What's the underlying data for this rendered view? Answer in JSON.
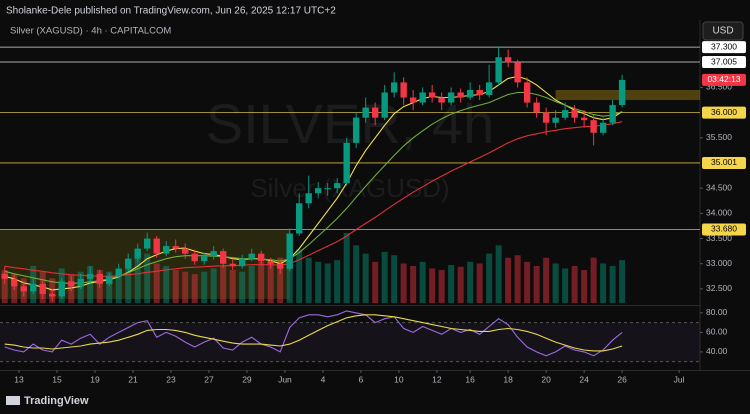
{
  "header": "Sholanke-Dele published on TradingView.com, Jun 26, 2025 12:17 UTC+2",
  "currency": "USD",
  "footer": "TradingView",
  "chart_data": {
    "type": "candlestick",
    "legend": "Silver (XAGUSD) · 4h · CAPITALCOM",
    "watermark": {
      "symbol": "SILVER, 4h",
      "description": "Silver (XAGUSD)"
    },
    "up_color": "#089981",
    "down_color": "#f23645",
    "xlim": [
      -0.5,
      73.2
    ],
    "xticks": [
      {
        "value": 1.5,
        "label": "13"
      },
      {
        "value": 5.5,
        "label": "15"
      },
      {
        "value": 9.5,
        "label": "19"
      },
      {
        "value": 13.5,
        "label": "21"
      },
      {
        "value": 17.5,
        "label": "23"
      },
      {
        "value": 21.5,
        "label": "27"
      },
      {
        "value": 25.5,
        "label": "29"
      },
      {
        "value": 29.5,
        "label": "Jun"
      },
      {
        "value": 33.5,
        "label": "4"
      },
      {
        "value": 37.5,
        "label": "6"
      },
      {
        "value": 41.5,
        "label": "10"
      },
      {
        "value": 45.5,
        "label": "12"
      },
      {
        "value": 49,
        "label": "16"
      },
      {
        "value": 53,
        "label": "18"
      },
      {
        "value": 57,
        "label": "20"
      },
      {
        "value": 61,
        "label": "24"
      },
      {
        "value": 65,
        "label": "26"
      },
      {
        "value": 71,
        "label": "Jul"
      }
    ],
    "ylim": [
      32.22,
      37.74
    ],
    "yticks": [
      {
        "value": 32.5,
        "label": "32.500"
      },
      {
        "value": 33,
        "label": "33.000"
      },
      {
        "value": 33.5,
        "label": "33.500"
      },
      {
        "value": 34,
        "label": "34.000"
      },
      {
        "value": 34.5,
        "label": "34.500"
      },
      {
        "value": 35.5,
        "label": "35.500"
      },
      {
        "value": 36.5,
        "label": "36.500"
      }
    ],
    "levels": [
      {
        "value": 37.3,
        "label": "37.300",
        "color": "#ffffff"
      },
      {
        "value": 37.005,
        "label": "37.005",
        "color": "#ffffff"
      },
      {
        "value": 36,
        "label": "36.000",
        "color": "#f5d64a"
      },
      {
        "value": 35.001,
        "label": "35.001",
        "color": "#f5d64a"
      },
      {
        "value": 33.68,
        "label": "33.680",
        "color": "#f5d64a"
      }
    ],
    "zones": [
      {
        "x": [
          -0.5,
          30
        ],
        "y": [
          32.3,
          33.68
        ],
        "color": "rgba(120,110,20,0.28)"
      },
      {
        "x": [
          58,
          73.2
        ],
        "y": [
          36.25,
          36.45
        ],
        "color": "rgba(160,130,20,0.45)"
      }
    ],
    "countdown": "03:42:13",
    "candles": [
      [
        32.8,
        32.95,
        32.6,
        32.7
      ],
      [
        32.7,
        32.78,
        32.48,
        32.55
      ],
      [
        32.55,
        32.65,
        32.35,
        32.45
      ],
      [
        32.45,
        32.7,
        32.4,
        32.6
      ],
      [
        32.6,
        32.66,
        32.3,
        32.4
      ],
      [
        32.4,
        32.5,
        32.25,
        32.35
      ],
      [
        32.35,
        32.72,
        32.3,
        32.65
      ],
      [
        32.65,
        32.75,
        32.45,
        32.55
      ],
      [
        32.55,
        32.8,
        32.5,
        32.7
      ],
      [
        32.7,
        32.95,
        32.62,
        32.8
      ],
      [
        32.8,
        32.88,
        32.52,
        32.6
      ],
      [
        32.6,
        32.82,
        32.55,
        32.75
      ],
      [
        32.75,
        33.0,
        32.7,
        32.9
      ],
      [
        32.9,
        33.2,
        32.85,
        33.1
      ],
      [
        33.1,
        33.4,
        33.02,
        33.3
      ],
      [
        33.3,
        33.62,
        33.25,
        33.5
      ],
      [
        33.5,
        33.55,
        33.12,
        33.2
      ],
      [
        33.2,
        33.45,
        33.15,
        33.35
      ],
      [
        33.35,
        33.48,
        33.22,
        33.3
      ],
      [
        33.3,
        33.4,
        33.1,
        33.2
      ],
      [
        33.2,
        33.28,
        32.98,
        33.05
      ],
      [
        33.05,
        33.22,
        32.98,
        33.15
      ],
      [
        33.15,
        33.35,
        33.08,
        33.25
      ],
      [
        33.25,
        33.3,
        32.92,
        33.0
      ],
      [
        33.0,
        33.1,
        32.88,
        32.95
      ],
      [
        32.95,
        33.18,
        32.9,
        33.1
      ],
      [
        33.1,
        33.3,
        33.05,
        33.2
      ],
      [
        33.2,
        33.26,
        32.98,
        33.05
      ],
      [
        33.05,
        33.12,
        32.9,
        33.0
      ],
      [
        33.0,
        33.08,
        32.8,
        32.9
      ],
      [
        32.9,
        33.7,
        32.85,
        33.6
      ],
      [
        33.6,
        34.4,
        33.55,
        34.2
      ],
      [
        34.2,
        34.75,
        34.1,
        34.4
      ],
      [
        34.4,
        34.62,
        34.3,
        34.5
      ],
      [
        34.5,
        34.6,
        34.35,
        34.5
      ],
      [
        34.5,
        34.7,
        34.4,
        34.6
      ],
      [
        34.6,
        35.5,
        34.55,
        35.4
      ],
      [
        35.4,
        36.0,
        35.3,
        35.9
      ],
      [
        35.9,
        36.3,
        35.8,
        36.1
      ],
      [
        36.1,
        36.2,
        35.75,
        35.9
      ],
      [
        35.9,
        36.55,
        35.85,
        36.4
      ],
      [
        36.4,
        36.8,
        36.3,
        36.6
      ],
      [
        36.6,
        36.7,
        36.15,
        36.3
      ],
      [
        36.3,
        36.45,
        36.05,
        36.2
      ],
      [
        36.2,
        36.5,
        36.15,
        36.4
      ],
      [
        36.4,
        36.55,
        36.2,
        36.3
      ],
      [
        36.3,
        36.4,
        36.05,
        36.2
      ],
      [
        36.2,
        36.5,
        36.15,
        36.4
      ],
      [
        36.4,
        36.48,
        36.2,
        36.3
      ],
      [
        36.3,
        36.6,
        36.25,
        36.45
      ],
      [
        36.45,
        36.55,
        36.25,
        36.35
      ],
      [
        36.35,
        36.95,
        36.3,
        36.6
      ],
      [
        36.6,
        37.32,
        36.55,
        37.1
      ],
      [
        37.1,
        37.25,
        36.9,
        37.0
      ],
      [
        37.0,
        37.05,
        36.5,
        36.6
      ],
      [
        36.6,
        36.7,
        36.1,
        36.2
      ],
      [
        36.2,
        36.3,
        35.9,
        36.0
      ],
      [
        36.0,
        36.1,
        35.55,
        35.8
      ],
      [
        35.8,
        36.05,
        35.7,
        35.9
      ],
      [
        35.9,
        36.2,
        35.85,
        36.05
      ],
      [
        36.05,
        36.15,
        35.8,
        35.9
      ],
      [
        35.9,
        36.05,
        35.7,
        35.85
      ],
      [
        35.85,
        35.95,
        35.35,
        35.6
      ],
      [
        35.6,
        35.9,
        35.55,
        35.8
      ],
      [
        35.8,
        36.25,
        35.75,
        36.15
      ],
      [
        36.15,
        36.75,
        36.1,
        36.65
      ]
    ],
    "volume": [
      40,
      35,
      30,
      45,
      38,
      30,
      42,
      35,
      38,
      45,
      40,
      38,
      42,
      50,
      55,
      60,
      48,
      45,
      40,
      38,
      35,
      38,
      42,
      45,
      40,
      38,
      45,
      50,
      48,
      55,
      70,
      65,
      55,
      50,
      48,
      52,
      85,
      70,
      60,
      50,
      62,
      58,
      48,
      45,
      50,
      42,
      40,
      46,
      44,
      50,
      48,
      60,
      70,
      55,
      58,
      50,
      45,
      55,
      48,
      42,
      45,
      40,
      55,
      48,
      45,
      52
    ],
    "series": [
      {
        "color": "#f2e34a",
        "values": [
          32.75,
          32.7,
          32.62,
          32.58,
          32.54,
          32.48,
          32.5,
          32.52,
          32.55,
          32.62,
          32.65,
          32.68,
          32.74,
          32.83,
          32.95,
          33.1,
          33.18,
          33.25,
          33.3,
          33.31,
          33.25,
          33.2,
          33.18,
          33.15,
          33.1,
          33.08,
          33.1,
          33.1,
          33.06,
          33.0,
          33.1,
          33.3,
          33.55,
          33.8,
          34.05,
          34.3,
          34.6,
          34.95,
          35.25,
          35.5,
          35.75,
          35.98,
          36.12,
          36.2,
          36.28,
          36.32,
          36.3,
          36.3,
          36.32,
          36.34,
          36.36,
          36.42,
          36.55,
          36.68,
          36.72,
          36.66,
          36.55,
          36.4,
          36.25,
          36.15,
          36.05,
          35.98,
          35.9,
          35.86,
          35.9,
          36.02
        ]
      },
      {
        "color": "#6fae3a",
        "values": [
          32.85,
          32.8,
          32.76,
          32.72,
          32.68,
          32.64,
          32.62,
          32.61,
          32.62,
          32.64,
          32.66,
          32.7,
          32.75,
          32.82,
          32.9,
          32.98,
          33.04,
          33.1,
          33.14,
          33.16,
          33.16,
          33.16,
          33.15,
          33.14,
          33.12,
          33.1,
          33.1,
          33.09,
          33.08,
          33.05,
          33.1,
          33.22,
          33.38,
          33.55,
          33.72,
          33.9,
          34.1,
          34.32,
          34.54,
          34.75,
          34.95,
          35.15,
          35.34,
          35.5,
          35.64,
          35.77,
          35.88,
          35.97,
          36.04,
          36.1,
          36.15,
          36.2,
          36.28,
          36.36,
          36.4,
          36.4,
          36.36,
          36.3,
          36.22,
          36.15,
          36.08,
          36.02,
          35.96,
          35.93,
          35.95,
          36.02
        ]
      },
      {
        "color": "#e0303a",
        "values": [
          32.95,
          32.92,
          32.9,
          32.87,
          32.85,
          32.82,
          32.8,
          32.78,
          32.77,
          32.76,
          32.75,
          32.75,
          32.76,
          32.78,
          32.8,
          32.83,
          32.85,
          32.88,
          32.9,
          32.92,
          32.93,
          32.94,
          32.95,
          32.96,
          32.96,
          32.97,
          32.98,
          32.98,
          32.98,
          32.97,
          33.0,
          33.08,
          33.17,
          33.26,
          33.35,
          33.44,
          33.55,
          33.68,
          33.8,
          33.92,
          34.05,
          34.18,
          34.3,
          34.42,
          34.53,
          34.64,
          34.74,
          34.84,
          34.93,
          35.02,
          35.11,
          35.2,
          35.3,
          35.4,
          35.48,
          35.54,
          35.58,
          35.62,
          35.65,
          35.68,
          35.7,
          35.72,
          35.73,
          35.75,
          35.78,
          35.82
        ]
      }
    ],
    "rsi": {
      "ylim": [
        23.5,
        85
      ],
      "yticks": [
        {
          "value": 80,
          "label": "80.00"
        },
        {
          "value": 60,
          "label": "60.00"
        },
        {
          "value": 40,
          "label": "40.00"
        }
      ],
      "band": [
        70,
        30
      ],
      "color": "#9c6be0",
      "ma_color": "#e8d84a",
      "values": [
        45,
        42,
        40,
        48,
        42,
        40,
        52,
        48,
        54,
        58,
        48,
        55,
        60,
        65,
        70,
        72,
        55,
        60,
        56,
        50,
        45,
        50,
        54,
        44,
        42,
        50,
        55,
        48,
        45,
        40,
        65,
        75,
        78,
        78,
        76,
        78,
        82,
        80,
        78,
        70,
        74,
        76,
        64,
        60,
        66,
        62,
        58,
        64,
        60,
        63,
        58,
        66,
        74,
        68,
        55,
        45,
        40,
        36,
        40,
        46,
        42,
        40,
        36,
        42,
        52,
        60
      ],
      "ma": [
        48,
        47,
        45,
        44,
        44,
        43,
        44,
        45,
        46,
        48,
        49,
        50,
        52,
        55,
        58,
        62,
        63,
        63,
        62,
        60,
        57,
        55,
        53,
        51,
        49,
        48,
        48,
        48,
        47,
        46,
        48,
        52,
        57,
        62,
        67,
        71,
        75,
        77,
        78,
        78,
        77,
        76,
        74,
        72,
        70,
        68,
        66,
        64,
        63,
        62,
        61,
        61,
        63,
        64,
        63,
        61,
        58,
        54,
        50,
        47,
        44,
        42,
        41,
        41,
        43,
        46
      ]
    }
  }
}
